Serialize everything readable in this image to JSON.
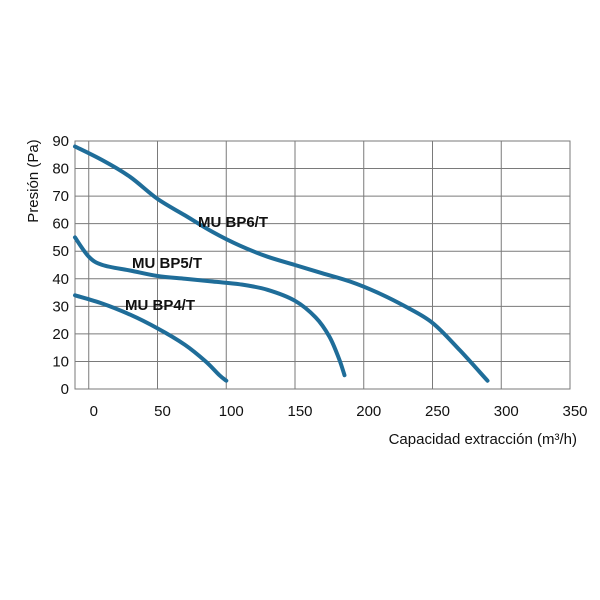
{
  "chart_data": {
    "type": "line",
    "title": "",
    "xlabel": "Capacidad extracción (m³/h)",
    "ylabel": "Presión (Pa)",
    "xlim": [
      -10,
      350
    ],
    "ylim": [
      0,
      90
    ],
    "x_ticks": [
      "0",
      "50",
      "100",
      "150",
      "200",
      "250",
      "300",
      "350"
    ],
    "y_ticks": [
      "0",
      "10",
      "20",
      "30",
      "40",
      "50",
      "60",
      "70",
      "80",
      "90"
    ],
    "grid": true,
    "legend": "none",
    "line_color": "#1f6d99",
    "series": [
      {
        "name": "MU BP6/T",
        "points": [
          [
            -10,
            88
          ],
          [
            10,
            83
          ],
          [
            30,
            77
          ],
          [
            50,
            69
          ],
          [
            70,
            63
          ],
          [
            90,
            57
          ],
          [
            110,
            52
          ],
          [
            130,
            48
          ],
          [
            150,
            45
          ],
          [
            170,
            42
          ],
          [
            190,
            39
          ],
          [
            210,
            35
          ],
          [
            230,
            30
          ],
          [
            250,
            24
          ],
          [
            270,
            14
          ],
          [
            290,
            3
          ]
        ]
      },
      {
        "name": "MU BP5/T",
        "points": [
          [
            -10,
            55
          ],
          [
            0,
            48
          ],
          [
            10,
            45
          ],
          [
            30,
            43
          ],
          [
            50,
            41
          ],
          [
            70,
            40
          ],
          [
            90,
            39
          ],
          [
            110,
            38
          ],
          [
            130,
            36
          ],
          [
            150,
            32
          ],
          [
            165,
            26
          ],
          [
            175,
            19
          ],
          [
            182,
            11
          ],
          [
            186,
            5
          ]
        ]
      },
      {
        "name": "MU BP4/T",
        "points": [
          [
            -10,
            34
          ],
          [
            10,
            31
          ],
          [
            30,
            27
          ],
          [
            50,
            22
          ],
          [
            70,
            16
          ],
          [
            85,
            10
          ],
          [
            95,
            5
          ],
          [
            100,
            3
          ]
        ]
      }
    ]
  }
}
